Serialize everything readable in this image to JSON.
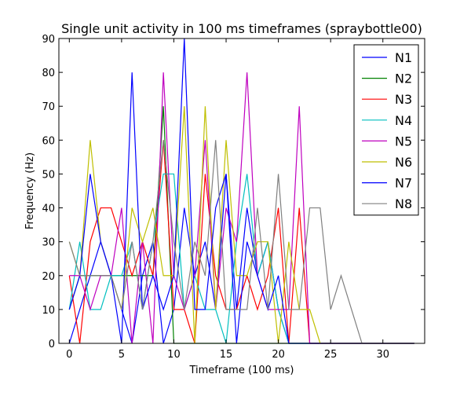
{
  "chart_data": {
    "type": "line",
    "title": "Single unit activity in 100 ms timeframes (spraybottle00)",
    "xlabel": "Timeframe (100 ms)",
    "ylabel": "Frequency (Hz)",
    "xlim": [
      -1,
      34
    ],
    "ylim": [
      0,
      90
    ],
    "xticks": [
      0,
      5,
      10,
      15,
      20,
      25,
      30
    ],
    "yticks": [
      0,
      10,
      20,
      30,
      40,
      50,
      60,
      70,
      80,
      90
    ],
    "grid": false,
    "legend_position": "top-right",
    "series": [
      {
        "name": "N1",
        "color": "#0000ff",
        "x": [
          0,
          1,
          2,
          3,
          4,
          5,
          6,
          7,
          8,
          9,
          10,
          11,
          12,
          13,
          14,
          15,
          16,
          17,
          18,
          19,
          20,
          21,
          22,
          23,
          24,
          25,
          26,
          27,
          28,
          29,
          30,
          31,
          32,
          33
        ],
        "values": [
          0,
          10,
          20,
          30,
          20,
          10,
          0,
          20,
          30,
          0,
          10,
          40,
          20,
          30,
          10,
          50,
          10,
          40,
          20,
          30,
          10,
          0,
          0,
          0,
          0,
          0,
          0,
          0,
          0,
          0,
          0,
          0,
          0,
          0
        ]
      },
      {
        "name": "N2",
        "color": "#008000",
        "x": [
          0,
          1,
          2,
          3,
          4,
          5,
          6,
          7,
          8,
          9,
          10,
          11,
          12,
          13,
          14,
          15,
          16,
          17,
          18,
          19,
          20,
          21,
          22,
          23,
          24,
          25,
          26,
          27,
          28,
          29,
          30,
          31,
          32,
          33
        ],
        "values": [
          10,
          20,
          20,
          20,
          20,
          20,
          20,
          20,
          20,
          70,
          0,
          0,
          0,
          0,
          0,
          0,
          0,
          0,
          0,
          0,
          0,
          0,
          0,
          0,
          0,
          0,
          0,
          0,
          0,
          0,
          0,
          0,
          0,
          0
        ]
      },
      {
        "name": "N3",
        "color": "#ff0000",
        "x": [
          0,
          1,
          2,
          3,
          4,
          5,
          6,
          7,
          8,
          9,
          10,
          11,
          12,
          13,
          14,
          15,
          16,
          17,
          18,
          19,
          20,
          21,
          22,
          23,
          24,
          25,
          26,
          27,
          28,
          29,
          30,
          31,
          32,
          33
        ],
        "values": [
          20,
          0,
          30,
          40,
          40,
          30,
          20,
          30,
          20,
          60,
          10,
          10,
          0,
          50,
          20,
          10,
          10,
          20,
          10,
          20,
          40,
          0,
          40,
          0,
          0,
          0,
          0,
          0,
          0,
          0,
          0,
          0,
          0,
          0
        ]
      },
      {
        "name": "N4",
        "color": "#00bfbf",
        "x": [
          0,
          1,
          2,
          3,
          4,
          5,
          6,
          7,
          8,
          9,
          10,
          11,
          12,
          13,
          14,
          15,
          16,
          17,
          18,
          19,
          20,
          21,
          22,
          23,
          24,
          25,
          26,
          27,
          28,
          29,
          30,
          31,
          32,
          33
        ],
        "values": [
          10,
          30,
          10,
          10,
          20,
          20,
          30,
          10,
          30,
          50,
          50,
          10,
          20,
          10,
          10,
          0,
          30,
          50,
          20,
          30,
          10,
          0,
          0,
          0,
          0,
          0,
          0,
          0,
          0,
          0,
          0,
          0,
          0,
          0
        ]
      },
      {
        "name": "N5",
        "color": "#bf00bf",
        "x": [
          0,
          1,
          2,
          3,
          4,
          5,
          6,
          7,
          8,
          9,
          10,
          11,
          12,
          13,
          14,
          15,
          16,
          17,
          18,
          19,
          20,
          21,
          22,
          23,
          24,
          25,
          26,
          27,
          28,
          29,
          30,
          31,
          32,
          33
        ],
        "values": [
          20,
          20,
          10,
          20,
          20,
          40,
          0,
          30,
          0,
          80,
          20,
          10,
          20,
          60,
          10,
          40,
          30,
          80,
          20,
          10,
          10,
          10,
          70,
          0,
          0,
          0,
          0,
          0,
          0,
          0,
          0,
          0,
          0,
          0
        ]
      },
      {
        "name": "N6",
        "color": "#bfbf00",
        "x": [
          0,
          1,
          2,
          3,
          4,
          5,
          6,
          7,
          8,
          9,
          10,
          11,
          12,
          13,
          14,
          15,
          16,
          17,
          18,
          19,
          20,
          21,
          22,
          23,
          24,
          25,
          26,
          27,
          28,
          29,
          30,
          31,
          32,
          33
        ],
        "values": [
          30,
          20,
          60,
          30,
          20,
          10,
          40,
          30,
          40,
          20,
          20,
          70,
          0,
          70,
          10,
          60,
          20,
          20,
          30,
          30,
          0,
          30,
          10,
          10,
          0,
          0,
          0,
          0,
          0,
          0,
          0,
          0,
          0,
          0
        ]
      },
      {
        "name": "N7",
        "color": "#0000ff",
        "x": [
          0,
          1,
          2,
          3,
          4,
          5,
          6,
          7,
          8,
          9,
          10,
          11,
          12,
          13,
          14,
          15,
          16,
          17,
          18,
          19,
          20,
          21,
          22,
          23,
          24,
          25,
          26,
          27,
          28,
          29,
          30,
          31,
          32,
          33
        ],
        "values": [
          10,
          20,
          50,
          30,
          20,
          0,
          80,
          10,
          20,
          10,
          20,
          90,
          10,
          10,
          40,
          50,
          0,
          30,
          20,
          10,
          20,
          0,
          0,
          0,
          0,
          0,
          0,
          0,
          0,
          0,
          0,
          0,
          0,
          0
        ]
      },
      {
        "name": "N8",
        "color": "#808080",
        "x": [
          0,
          1,
          2,
          3,
          4,
          5,
          6,
          7,
          8,
          9,
          10,
          11,
          12,
          13,
          14,
          15,
          16,
          17,
          18,
          19,
          20,
          21,
          22,
          23,
          24,
          25,
          26,
          27,
          28,
          29,
          30,
          31,
          32,
          33
        ],
        "values": [
          30,
          20,
          20,
          20,
          20,
          10,
          30,
          10,
          30,
          60,
          30,
          10,
          30,
          20,
          60,
          10,
          10,
          10,
          40,
          10,
          50,
          10,
          10,
          40,
          40,
          10,
          20,
          10,
          0,
          0,
          0,
          0,
          0,
          0
        ]
      }
    ]
  }
}
